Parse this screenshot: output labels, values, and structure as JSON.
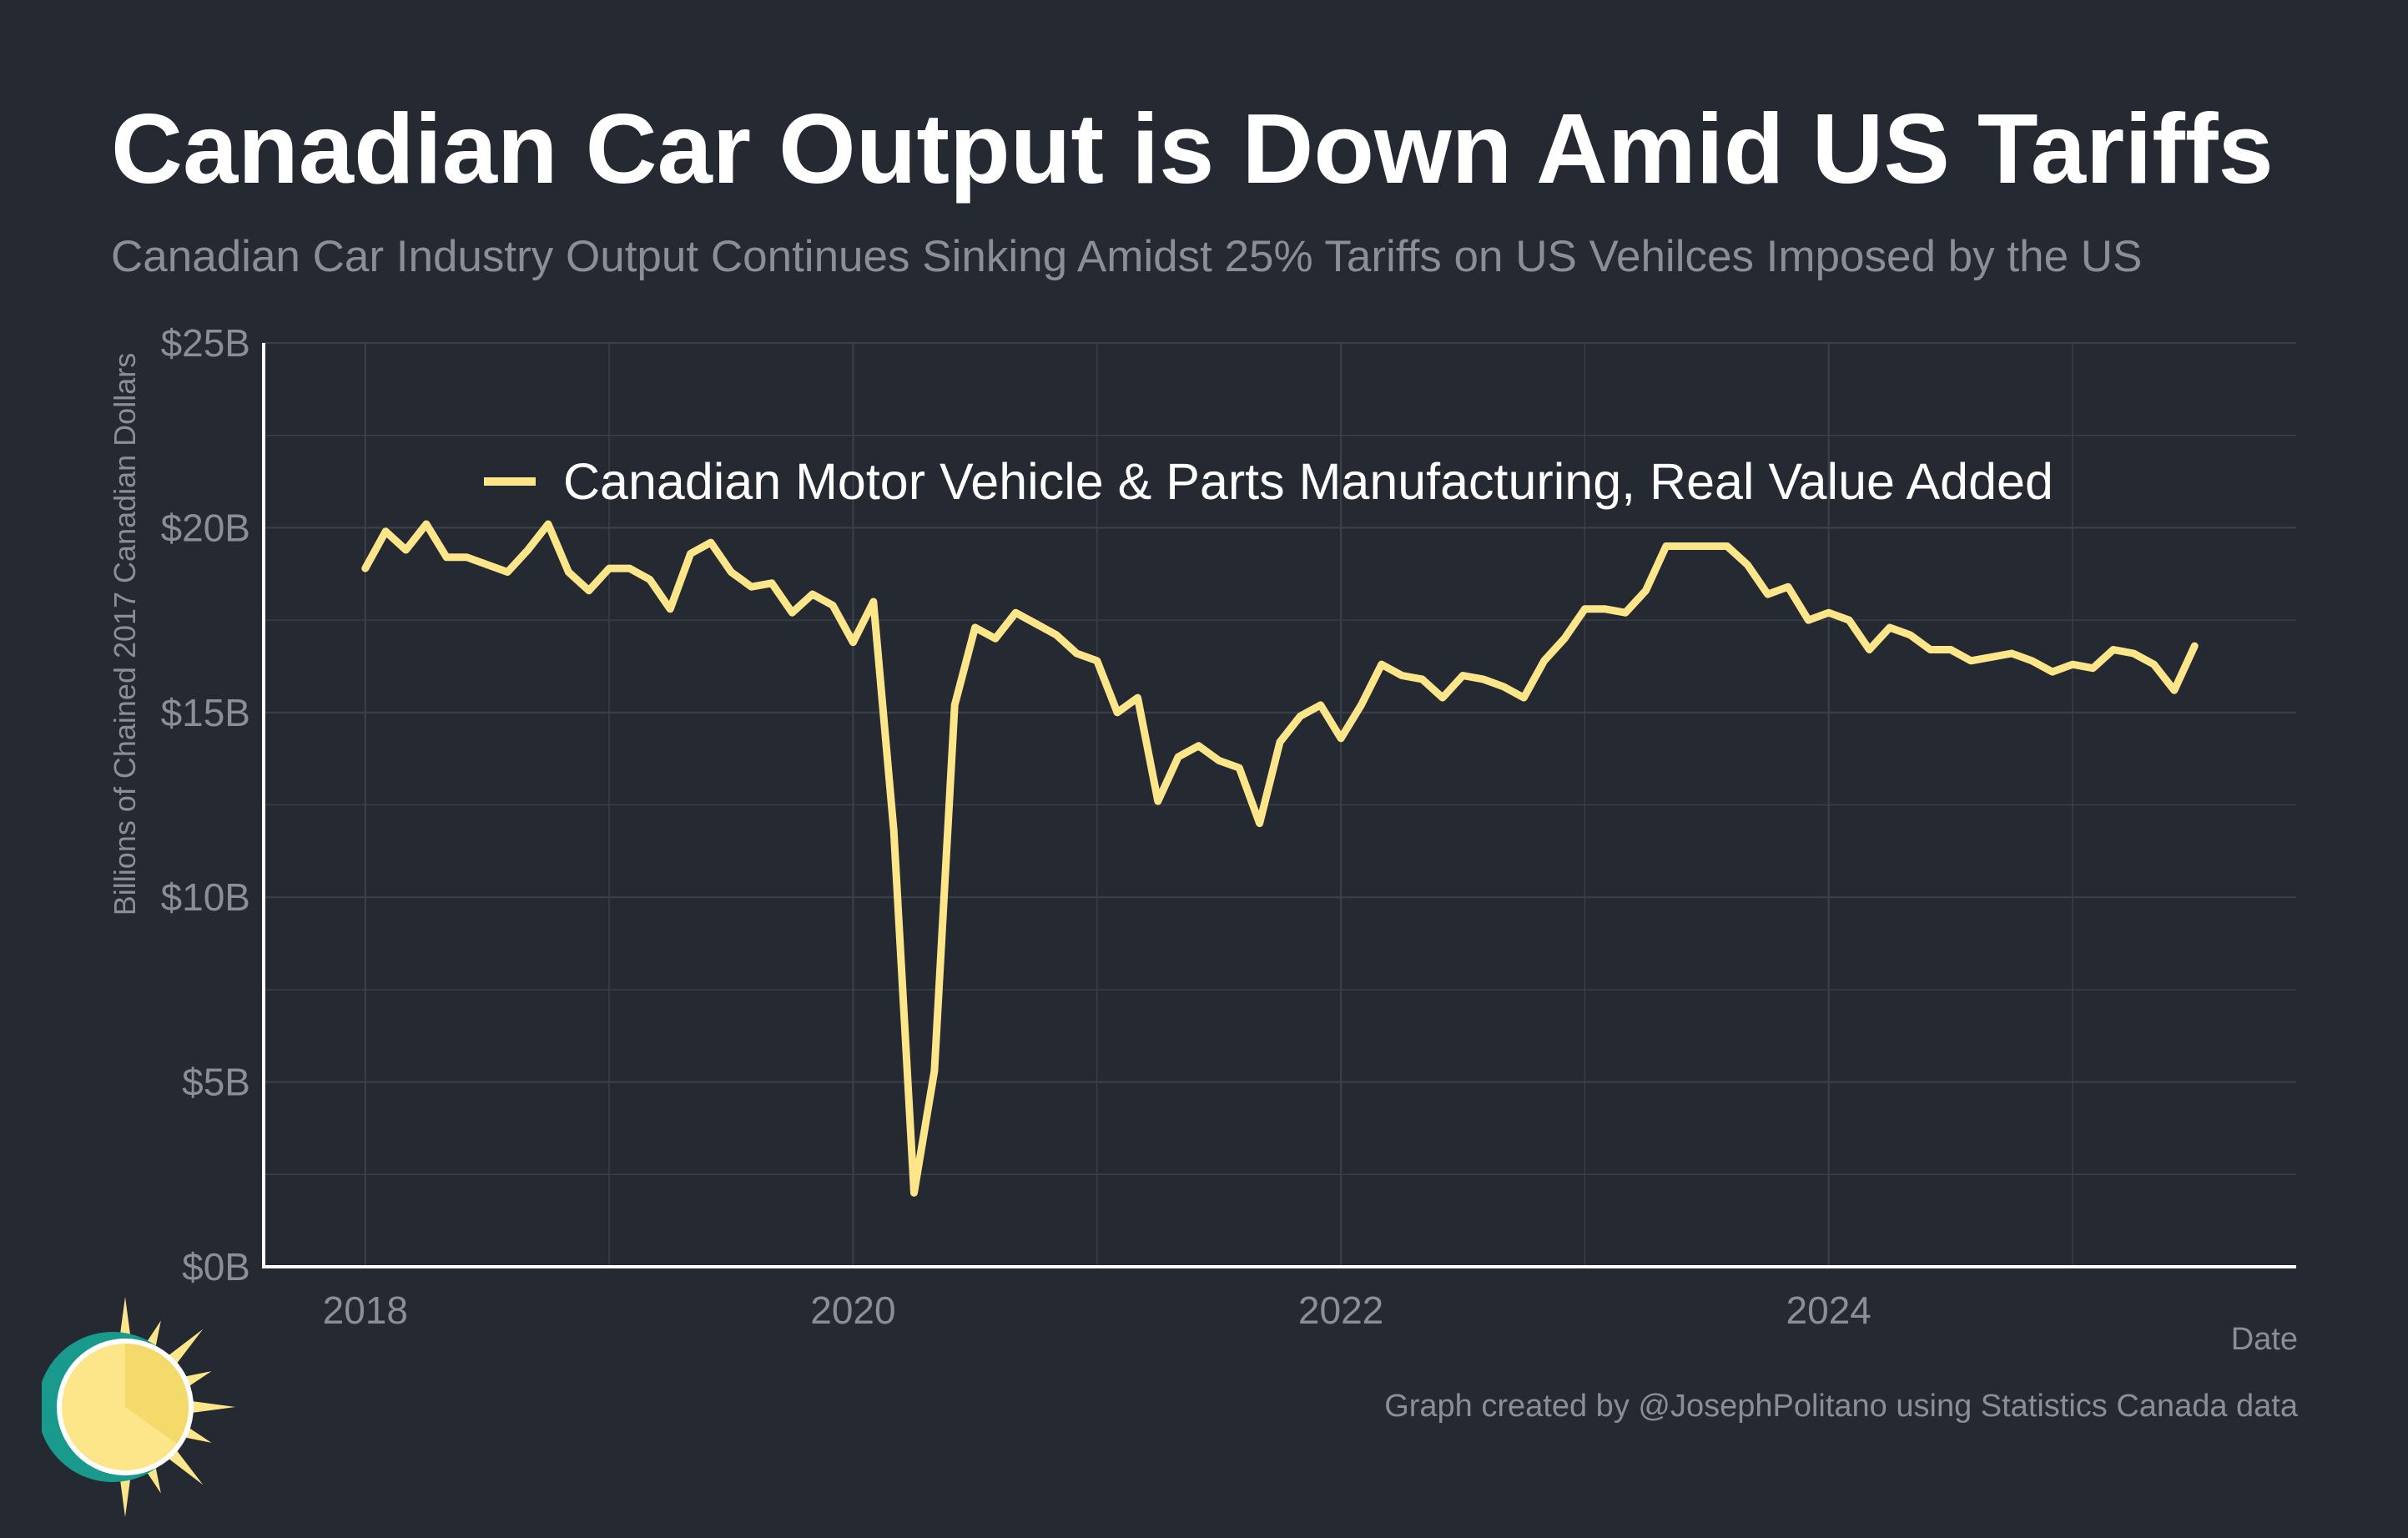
{
  "colors": {
    "background": "#252932",
    "line": "#fde68a",
    "grid": "#3b3f48",
    "axis": "#ffffff",
    "muted_text": "#8b8e95",
    "logo_teal": "#1a9a8c",
    "logo_sun": "#fde68a"
  },
  "logo": {
    "icon": "sun-logo-icon"
  },
  "chart_data": {
    "type": "line",
    "title": "Canadian Car Output is Down Amid US Tariffs",
    "subtitle": "Canadian Car Industry Output Continues Sinking Amidst 25% Tariffs on US Vehilces Imposed by the US",
    "xlabel": "Date",
    "ylabel": "Billions of Chained 2017 Canadian Dollars",
    "credit": "Graph created by @JosephPolitano using Statistics Canada data",
    "ylim": [
      0,
      25
    ],
    "xlim": [
      "2017-08",
      "2025-12"
    ],
    "y_ticks": [
      {
        "value": 0,
        "label": "$0B"
      },
      {
        "value": 5,
        "label": "$5B"
      },
      {
        "value": 10,
        "label": "$10B"
      },
      {
        "value": 15,
        "label": "$15B"
      },
      {
        "value": 20,
        "label": "$20B"
      },
      {
        "value": 25,
        "label": "$25B"
      }
    ],
    "x_ticks": [
      {
        "value": "2018-01",
        "label": "2018"
      },
      {
        "value": "2020-01",
        "label": "2020"
      },
      {
        "value": "2022-01",
        "label": "2022"
      },
      {
        "value": "2024-01",
        "label": "2024"
      }
    ],
    "grid": true,
    "legend_position": "top-left",
    "series": [
      {
        "name": "Canadian Motor Vehicle & Parts Manufacturing, Real Value Added",
        "start": "2018-01",
        "frequency": "monthly",
        "values": [
          18.9,
          19.9,
          19.4,
          20.1,
          19.2,
          19.2,
          19.0,
          18.8,
          19.4,
          20.1,
          18.8,
          18.3,
          18.9,
          18.9,
          18.6,
          17.8,
          19.3,
          19.6,
          18.8,
          18.4,
          18.5,
          17.7,
          18.2,
          17.9,
          16.9,
          18.0,
          11.8,
          2.0,
          5.3,
          15.2,
          17.3,
          17.0,
          17.7,
          17.4,
          17.1,
          16.6,
          16.4,
          15.0,
          15.4,
          12.6,
          13.8,
          14.1,
          13.7,
          13.5,
          12.0,
          14.2,
          14.9,
          15.2,
          14.3,
          15.2,
          16.3,
          16.0,
          15.9,
          15.4,
          16.0,
          15.9,
          15.7,
          15.4,
          16.4,
          17.0,
          17.8,
          17.8,
          17.7,
          18.3,
          19.5,
          19.5,
          19.5,
          19.5,
          19.0,
          18.2,
          18.4,
          17.5,
          17.7,
          17.5,
          16.7,
          17.3,
          17.1,
          16.7,
          16.7,
          16.4,
          16.5,
          16.6,
          16.4,
          16.1,
          16.3,
          16.2,
          16.7,
          16.6,
          16.3,
          15.6,
          16.8
        ]
      }
    ]
  }
}
